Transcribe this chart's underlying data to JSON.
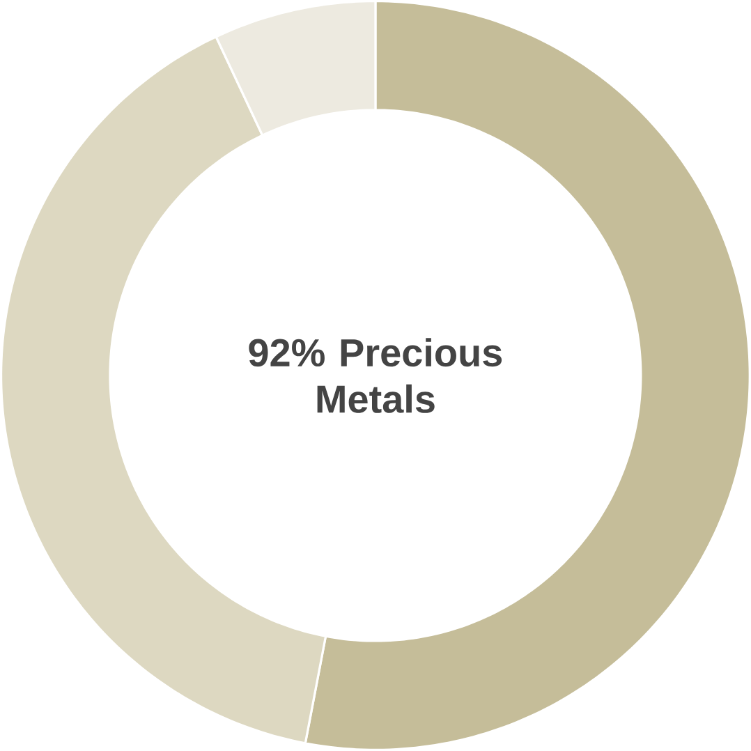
{
  "chart_data": {
    "type": "donut",
    "categories": [
      null,
      null,
      null
    ],
    "values": [
      53,
      40,
      7
    ],
    "colors": [
      "#c5bd99",
      "#ddd8c1",
      "#edeae0"
    ],
    "annotations": [
      "92% Precious Metals"
    ]
  }
}
